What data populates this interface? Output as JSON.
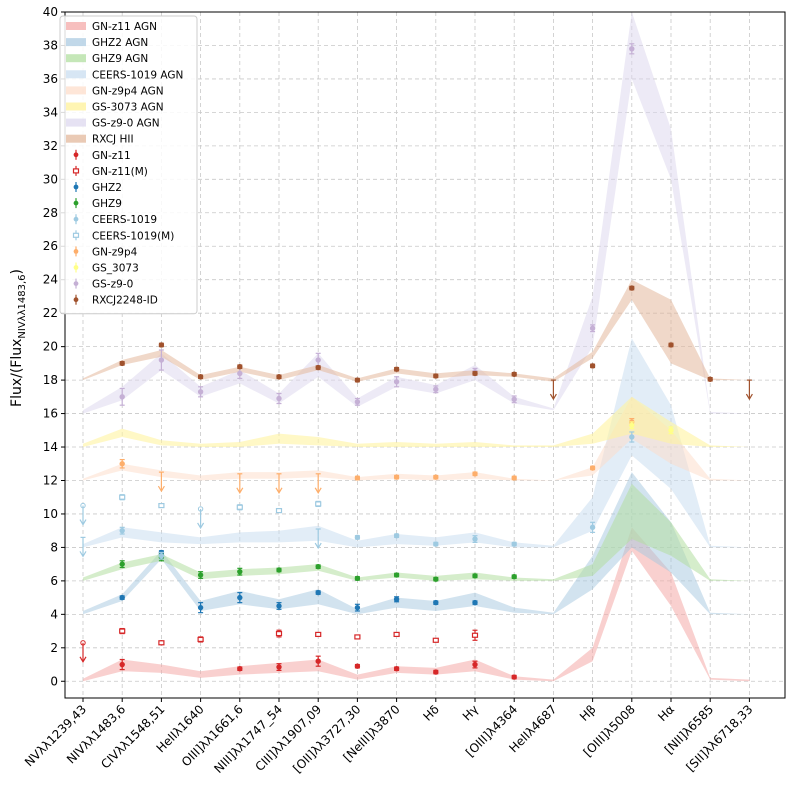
{
  "chart_data": {
    "type": "line",
    "title": "",
    "xlabel": "",
    "ylabel": "Flux/(Flux_NIVλλ1483,6)",
    "ylabel_parts": {
      "main": "Flux/(Flux",
      "sub": "NIVλλ1483,6",
      "close": ")"
    },
    "ylim": [
      -1,
      40
    ],
    "yticks": [
      0,
      2,
      4,
      6,
      8,
      10,
      12,
      14,
      16,
      18,
      20,
      22,
      24,
      26,
      28,
      30,
      32,
      34,
      36,
      38,
      40
    ],
    "grid": true,
    "legend_position": "top-left",
    "categories": [
      "NVλλ1239,43",
      "NIVλλ1483,6",
      "CIVλλ1548,51",
      "HeIIλ1640",
      "OIII]λλ1661,6",
      "NIII]λλ1747_54",
      "CIII]λλ1907,09",
      "[OII]λλ3727,30",
      "[NeIII]λ3870",
      "Hδ",
      "Hγ",
      "[OIII]λ4364",
      "HeIIλ4687",
      "Hβ",
      "[OIII]λ5008",
      "Hα",
      "[NII]λ6585",
      "[SII]λλ6718,33"
    ],
    "bands": [
      {
        "name": "GN-z11 AGN",
        "color": "#f4a9a8",
        "opacity": 0.55,
        "lower": [
          0,
          0.6,
          0.5,
          0.2,
          0.4,
          0.5,
          0.6,
          0.1,
          0.5,
          0.4,
          0.6,
          0.1,
          0,
          1.2,
          7.8,
          4.5,
          0.1,
          0
        ],
        "upper": [
          0.15,
          1.3,
          1.0,
          0.6,
          0.9,
          1.1,
          1.3,
          0.4,
          0.9,
          0.8,
          1.3,
          0.3,
          0.1,
          2.0,
          9.2,
          6.5,
          0.2,
          0.1
        ]
      },
      {
        "name": "GHZ2 AGN",
        "color": "#a6c8e0",
        "opacity": 0.5,
        "lower": [
          4.0,
          4.8,
          7.3,
          4.2,
          4.6,
          4.3,
          4.6,
          4.0,
          4.4,
          4.2,
          4.5,
          4.1,
          4.0,
          5.5,
          8.0,
          6.5,
          4.0,
          4.0
        ],
        "upper": [
          4.2,
          5.2,
          7.8,
          4.8,
          5.4,
          4.9,
          5.5,
          4.3,
          5.0,
          4.8,
          5.3,
          4.4,
          4.1,
          7.5,
          12.5,
          9.5,
          4.1,
          4.0
        ]
      },
      {
        "name": "GHZ9 AGN",
        "color": "#b2dfa0",
        "opacity": 0.55,
        "lower": [
          6.0,
          6.7,
          7.2,
          6.1,
          6.3,
          6.4,
          6.6,
          6.0,
          6.2,
          6.0,
          6.1,
          6.0,
          6.0,
          6.3,
          8.5,
          7.5,
          6.0,
          6.0
        ],
        "upper": [
          6.2,
          7.1,
          7.6,
          6.5,
          6.7,
          6.8,
          7.0,
          6.2,
          6.5,
          6.3,
          6.5,
          6.2,
          6.1,
          7.0,
          11.8,
          9.5,
          6.1,
          6.0
        ]
      },
      {
        "name": "CEERS-1019 AGN",
        "color": "#c6dbef",
        "opacity": 0.5,
        "lower": [
          8.0,
          8.6,
          8.3,
          8.2,
          8.3,
          8.3,
          8.4,
          8.0,
          8.2,
          8.1,
          8.3,
          8.0,
          8.0,
          9.0,
          13.5,
          11.5,
          8.0,
          8.0
        ],
        "upper": [
          8.2,
          9.2,
          8.9,
          8.6,
          8.9,
          9.0,
          9.3,
          8.4,
          8.8,
          8.6,
          8.9,
          8.3,
          8.1,
          11.0,
          20.5,
          16.5,
          8.1,
          8.0
        ]
      },
      {
        "name": "GN-z9p4 AGN",
        "color": "#fddbc7",
        "opacity": 0.5,
        "lower": [
          12.0,
          12.6,
          12.2,
          12.0,
          12.1,
          12.1,
          12.2,
          12.0,
          12.1,
          12.0,
          12.1,
          12.0,
          12.0,
          12.3,
          14.5,
          13.0,
          12.0,
          12.0
        ],
        "upper": [
          12.1,
          13.0,
          12.6,
          12.3,
          12.5,
          12.5,
          12.6,
          12.2,
          12.4,
          12.3,
          12.5,
          12.1,
          12.0,
          12.8,
          17.0,
          15.0,
          12.1,
          12.0
        ]
      },
      {
        "name": "GS-3073 AGN",
        "color": "#fff3a0",
        "opacity": 0.6,
        "lower": [
          14.0,
          14.6,
          14.1,
          14.0,
          14.0,
          14.2,
          14.1,
          14.0,
          14.0,
          14.0,
          14.0,
          14.0,
          14.0,
          14.2,
          14.8,
          14.2,
          14.0,
          14.0
        ],
        "upper": [
          14.2,
          15.1,
          14.4,
          14.2,
          14.3,
          14.8,
          14.6,
          14.2,
          14.3,
          14.2,
          14.3,
          14.1,
          14.1,
          14.8,
          17.0,
          15.5,
          14.1,
          14.0
        ]
      },
      {
        "name": "GS-z9-0 AGN",
        "color": "#dcd6ee",
        "opacity": 0.5,
        "lower": [
          16.0,
          16.8,
          18.6,
          17.0,
          17.8,
          16.6,
          18.2,
          16.4,
          17.6,
          17.2,
          18.0,
          16.6,
          16.2,
          20.0,
          36.0,
          30.0,
          16.0,
          16.0
        ],
        "upper": [
          16.2,
          17.6,
          19.6,
          17.6,
          18.6,
          17.2,
          19.6,
          16.9,
          18.2,
          17.7,
          18.9,
          17.0,
          16.3,
          23.0,
          40.0,
          33.0,
          16.1,
          16.0
        ]
      },
      {
        "name": "RXCJ HII",
        "color": "#e3b89c",
        "opacity": 0.55,
        "lower": [
          18.0,
          18.9,
          19.4,
          18.0,
          18.5,
          18.0,
          18.6,
          17.9,
          18.4,
          18.1,
          18.3,
          18.2,
          17.9,
          19.3,
          22.8,
          19.0,
          18.0,
          18.0
        ],
        "upper": [
          18.1,
          19.2,
          19.8,
          18.3,
          18.8,
          18.3,
          18.9,
          18.1,
          18.7,
          18.4,
          18.6,
          18.4,
          18.1,
          19.7,
          24.0,
          22.8,
          18.1,
          18.0
        ]
      }
    ],
    "series": [
      {
        "name": "GN-z11",
        "color": "#d62728",
        "marker": "filled",
        "points": [
          [
            1,
            1.0,
            0.3
          ],
          [
            2,
            2.3,
            0
          ],
          [
            3,
            2.5,
            0.15
          ],
          [
            4,
            0.75,
            0.1
          ],
          [
            5,
            0.85,
            0.2
          ],
          [
            6,
            1.2,
            0.3
          ],
          [
            7,
            0.9,
            0.1
          ],
          [
            8,
            0.75,
            0.1
          ],
          [
            9,
            0.55,
            0.1
          ],
          [
            10,
            1.0,
            0.2
          ],
          [
            11,
            0.25,
            0.1
          ]
        ],
        "limits": []
      },
      {
        "name": "GN-z11(M)",
        "color": "#d62728",
        "marker": "open",
        "points": [
          [
            1,
            3.0,
            0.15
          ],
          [
            2,
            2.3,
            0
          ],
          [
            3,
            2.5,
            0.1
          ],
          [
            5,
            2.85,
            0.2
          ],
          [
            6,
            2.8,
            0.1
          ],
          [
            7,
            2.65,
            0.1
          ],
          [
            8,
            2.8,
            0.1
          ],
          [
            9,
            2.45,
            0.1
          ],
          [
            10,
            2.75,
            0.3
          ]
        ],
        "limits": [
          [
            0,
            2.3
          ]
        ]
      },
      {
        "name": "GHZ2",
        "color": "#1f77b4",
        "marker": "filled",
        "points": [
          [
            1,
            5.0,
            0.1
          ],
          [
            2,
            7.7,
            0.1
          ],
          [
            3,
            4.4,
            0.3
          ],
          [
            4,
            5.0,
            0.3
          ],
          [
            5,
            4.5,
            0.2
          ],
          [
            6,
            5.3,
            0.1
          ],
          [
            7,
            4.4,
            0.2
          ],
          [
            8,
            4.9,
            0.15
          ],
          [
            9,
            4.7,
            0.1
          ],
          [
            10,
            4.7,
            0.1
          ]
        ],
        "limits": []
      },
      {
        "name": "GHZ9",
        "color": "#2ca02c",
        "marker": "filled",
        "points": [
          [
            1,
            7.0,
            0.2
          ],
          [
            2,
            7.4,
            0.2
          ],
          [
            3,
            6.35,
            0.2
          ],
          [
            4,
            6.55,
            0.2
          ],
          [
            5,
            6.65,
            0.1
          ],
          [
            6,
            6.85,
            0.1
          ],
          [
            7,
            6.15,
            0.1
          ],
          [
            8,
            6.35,
            0.1
          ],
          [
            9,
            6.1,
            0.1
          ],
          [
            10,
            6.3,
            0.1
          ],
          [
            11,
            6.25,
            0.1
          ]
        ],
        "limits": []
      },
      {
        "name": "CEERS-1019",
        "color": "#9ecae1",
        "marker": "filled",
        "points": [
          [
            1,
            9.0,
            0.2
          ],
          [
            2,
            7.5,
            0.2
          ],
          [
            7,
            8.6,
            0.1
          ],
          [
            8,
            8.7,
            0.1
          ],
          [
            9,
            8.2,
            0.1
          ],
          [
            10,
            8.5,
            0.2
          ],
          [
            11,
            8.2,
            0.1
          ],
          [
            13,
            9.2,
            0.3
          ],
          [
            14,
            14.6,
            0.3
          ]
        ],
        "limits": [
          [
            0,
            8.6
          ],
          [
            6,
            9.1
          ]
        ]
      },
      {
        "name": "CEERS-1019(M)",
        "color": "#9ecae1",
        "marker": "open",
        "points": [
          [
            1,
            11.0,
            0.15
          ],
          [
            2,
            10.5,
            0.1
          ],
          [
            4,
            10.4,
            0.15
          ],
          [
            5,
            10.2,
            0.1
          ],
          [
            6,
            10.6,
            0.15
          ]
        ],
        "limits": [
          [
            0,
            10.5
          ],
          [
            3,
            10.3
          ]
        ]
      },
      {
        "name": "GN-z9p4",
        "color": "#fdae6b",
        "marker": "filled",
        "points": [
          [
            1,
            13.0,
            0.25
          ],
          [
            7,
            12.15,
            0.1
          ],
          [
            8,
            12.2,
            0.1
          ],
          [
            9,
            12.2,
            0.1
          ],
          [
            10,
            12.4,
            0.1
          ],
          [
            11,
            12.15,
            0.1
          ],
          [
            13,
            12.75,
            0.1
          ],
          [
            14,
            15.5,
            0.2
          ]
        ],
        "limits": [
          [
            2,
            12.5
          ],
          [
            4,
            12.4
          ],
          [
            5,
            12.4
          ],
          [
            6,
            12.4
          ]
        ]
      },
      {
        "name": "GS_3073",
        "color": "#ffff88",
        "marker": "filled",
        "points": [
          [
            14,
            15.3,
            0.2
          ],
          [
            15,
            15.0,
            0.2
          ]
        ],
        "limits": []
      },
      {
        "name": "GS-z9-0",
        "color": "#c5b0d5",
        "marker": "filled",
        "points": [
          [
            1,
            17.0,
            0.5
          ],
          [
            2,
            19.2,
            0.6
          ],
          [
            3,
            17.3,
            0.3
          ],
          [
            4,
            18.4,
            0.3
          ],
          [
            5,
            16.9,
            0.3
          ],
          [
            6,
            19.2,
            0.4
          ],
          [
            7,
            16.7,
            0.2
          ],
          [
            8,
            17.9,
            0.3
          ],
          [
            9,
            17.45,
            0.2
          ],
          [
            10,
            18.5,
            0.2
          ],
          [
            11,
            16.85,
            0.2
          ],
          [
            13,
            21.1,
            0.2
          ],
          [
            14,
            37.8,
            0.3
          ]
        ],
        "limits": []
      },
      {
        "name": "RXCJ2248-ID",
        "color": "#a0522d",
        "marker": "filled",
        "points": [
          [
            1,
            19.0,
            0.1
          ],
          [
            2,
            20.1,
            0.1
          ],
          [
            3,
            18.2,
            0.1
          ],
          [
            4,
            18.8,
            0.1
          ],
          [
            5,
            18.2,
            0.1
          ],
          [
            6,
            18.75,
            0.1
          ],
          [
            7,
            18.0,
            0.1
          ],
          [
            8,
            18.65,
            0.1
          ],
          [
            9,
            18.25,
            0.1
          ],
          [
            10,
            18.4,
            0.1
          ],
          [
            11,
            18.35,
            0.1
          ],
          [
            13,
            18.85,
            0.1
          ],
          [
            14,
            23.5,
            0.1
          ],
          [
            15,
            20.1,
            0.1
          ],
          [
            16,
            18.05,
            0.1
          ]
        ],
        "limits": [
          [
            12,
            18.0
          ],
          [
            17,
            18.0
          ]
        ]
      }
    ]
  }
}
